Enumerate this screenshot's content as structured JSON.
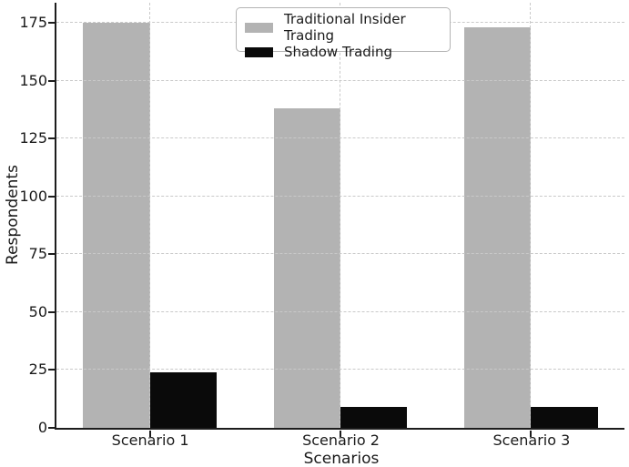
{
  "chart_data": {
    "type": "bar",
    "title": "",
    "categories": [
      "Scenario 1",
      "Scenario 2",
      "Scenario 3"
    ],
    "series": [
      {
        "name": "Traditional Insider Trading",
        "color": "#b3b3b3",
        "values": [
          175,
          138,
          173
        ]
      },
      {
        "name": "Shadow Trading",
        "color": "#0a0a0a",
        "values": [
          24,
          9,
          9
        ]
      }
    ],
    "xlabel": "Scenarios",
    "ylabel": "Respondents",
    "yticks": [
      0,
      25,
      50,
      75,
      100,
      125,
      150,
      175
    ],
    "ylim": [
      0,
      183.75
    ],
    "bar_width": 0.35,
    "grid": {
      "horizontal": true,
      "vertical": true,
      "style": "dashed",
      "color": "#c9c9c9"
    },
    "legend": {
      "position": "upper center"
    }
  }
}
